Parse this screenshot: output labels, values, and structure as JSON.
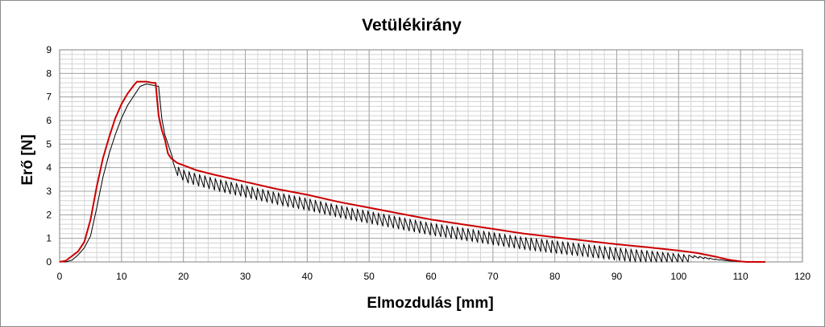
{
  "chart_data": {
    "type": "line",
    "title": "Vetülékirány",
    "xlabel": "Elmozdulás [mm]",
    "ylabel": "Erő [N]",
    "xlim": [
      0,
      120
    ],
    "ylim": [
      0,
      9
    ],
    "x_major_ticks": [
      0,
      10,
      20,
      30,
      40,
      50,
      60,
      70,
      80,
      90,
      100,
      110,
      120
    ],
    "x_tick_labels": [
      "0",
      "10",
      "20",
      "30",
      "40",
      "50",
      "60",
      "70",
      "80",
      "90",
      "100",
      "110",
      "120"
    ],
    "y_major_ticks": [
      0,
      1,
      2,
      3,
      4,
      5,
      6,
      7,
      8,
      9
    ],
    "y_tick_labels": [
      "0",
      "1",
      "2",
      "3",
      "4",
      "5",
      "6",
      "7",
      "8",
      "9"
    ],
    "grid": {
      "major": true,
      "minor": true,
      "x_minor_step": 2,
      "y_minor_step": 0.2
    },
    "legend": "none",
    "series": [
      {
        "color": "#cc0000",
        "envelope": true,
        "x": [
          0,
          1,
          2,
          3,
          4,
          5,
          6,
          7,
          8,
          9,
          10,
          11,
          12,
          12.5,
          13,
          14,
          15,
          15.5,
          16,
          16.5,
          17,
          17.5,
          18,
          19,
          20,
          22,
          25,
          30,
          35,
          40,
          45,
          50,
          55,
          60,
          65,
          70,
          75,
          80,
          85,
          90,
          95,
          100,
          103,
          106,
          108,
          110,
          111,
          112,
          114
        ],
        "y": [
          0,
          0.05,
          0.25,
          0.45,
          0.85,
          1.8,
          3.2,
          4.4,
          5.3,
          6.1,
          6.7,
          7.15,
          7.5,
          7.65,
          7.65,
          7.65,
          7.6,
          7.6,
          6.2,
          5.6,
          5.2,
          4.6,
          4.4,
          4.2,
          4.1,
          3.9,
          3.7,
          3.4,
          3.1,
          2.85,
          2.55,
          2.3,
          2.05,
          1.8,
          1.6,
          1.4,
          1.2,
          1.05,
          0.9,
          0.75,
          0.62,
          0.48,
          0.38,
          0.22,
          0.1,
          0.02,
          0,
          0,
          0
        ]
      },
      {
        "color": "#000000",
        "sawtooth_drop": 0.55,
        "sawtooth_start": 17.5,
        "sawtooth_step": 0.85,
        "x": [
          0,
          1,
          2,
          3,
          4,
          5,
          6,
          7,
          8,
          9,
          10,
          11,
          12,
          13,
          14,
          15,
          16,
          16.5,
          17,
          17.5,
          18,
          19,
          20,
          22,
          25,
          30,
          35,
          40,
          45,
          50,
          55,
          60,
          65,
          70,
          75,
          80,
          85,
          90,
          95,
          100,
          103,
          106,
          108,
          110,
          111
        ],
        "y": [
          0,
          0,
          0.08,
          0.3,
          0.6,
          1.1,
          2.3,
          3.6,
          4.6,
          5.4,
          6.1,
          6.65,
          7.05,
          7.45,
          7.55,
          7.5,
          7.45,
          6.1,
          5.4,
          5.0,
          4.3,
          4.05,
          3.9,
          3.75,
          3.55,
          3.25,
          2.95,
          2.7,
          2.4,
          2.15,
          1.9,
          1.65,
          1.45,
          1.25,
          1.05,
          0.9,
          0.75,
          0.6,
          0.48,
          0.34,
          0.25,
          0.12,
          0.05,
          0,
          0
        ]
      }
    ]
  }
}
